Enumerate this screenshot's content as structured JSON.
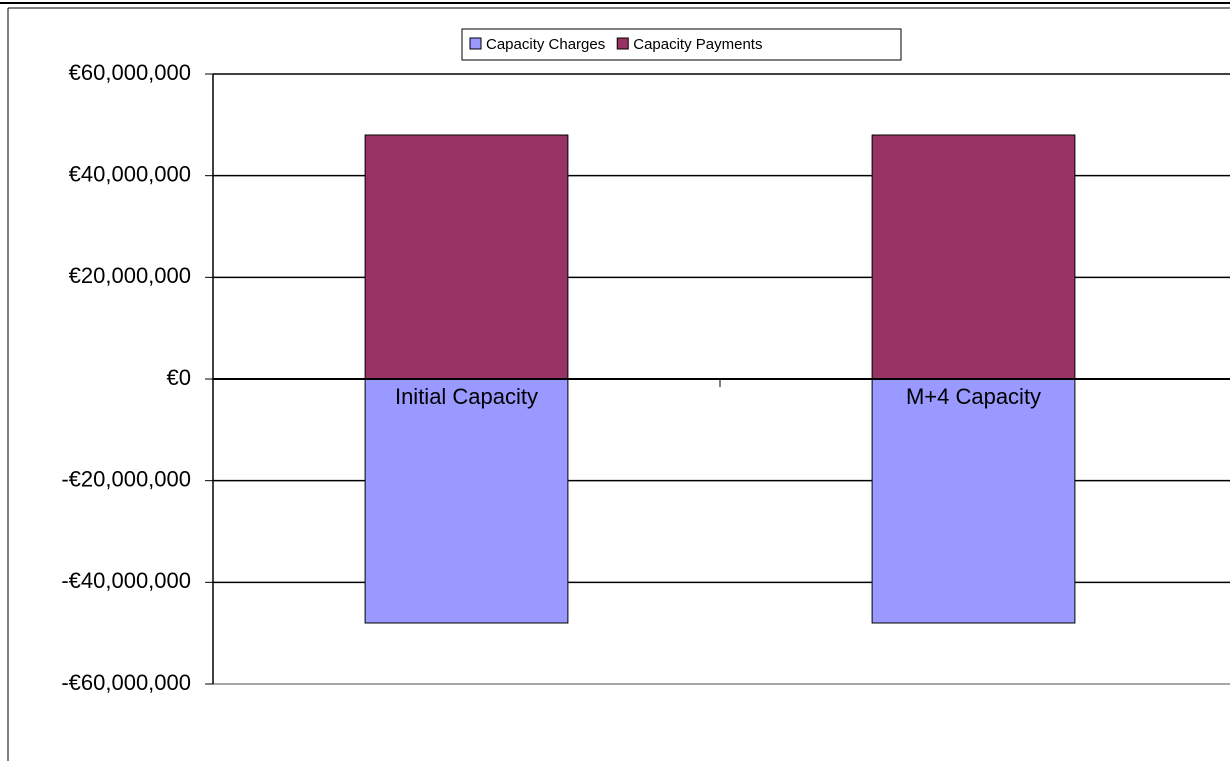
{
  "chart_data": {
    "type": "bar",
    "stacked": true,
    "categories": [
      "Initial Capacity",
      "M+4 Capacity"
    ],
    "series": [
      {
        "name": "Capacity Charges",
        "color": "#9999ff",
        "values": [
          -48000000,
          -48000000
        ]
      },
      {
        "name": "Capacity Payments",
        "color": "#993366",
        "values": [
          48000000,
          48000000
        ]
      }
    ],
    "ylim": [
      -60000000,
      60000000
    ],
    "yticks": [
      {
        "value": -60000000,
        "label": "-€60,000,000"
      },
      {
        "value": -40000000,
        "label": "-€40,000,000"
      },
      {
        "value": -20000000,
        "label": "-€20,000,000"
      },
      {
        "value": 0,
        "label": "€0"
      },
      {
        "value": 20000000,
        "label": "€20,000,000"
      },
      {
        "value": 40000000,
        "label": "€40,000,000"
      },
      {
        "value": 60000000,
        "label": "€60,000,000"
      }
    ],
    "grid": true,
    "legend": "top"
  }
}
